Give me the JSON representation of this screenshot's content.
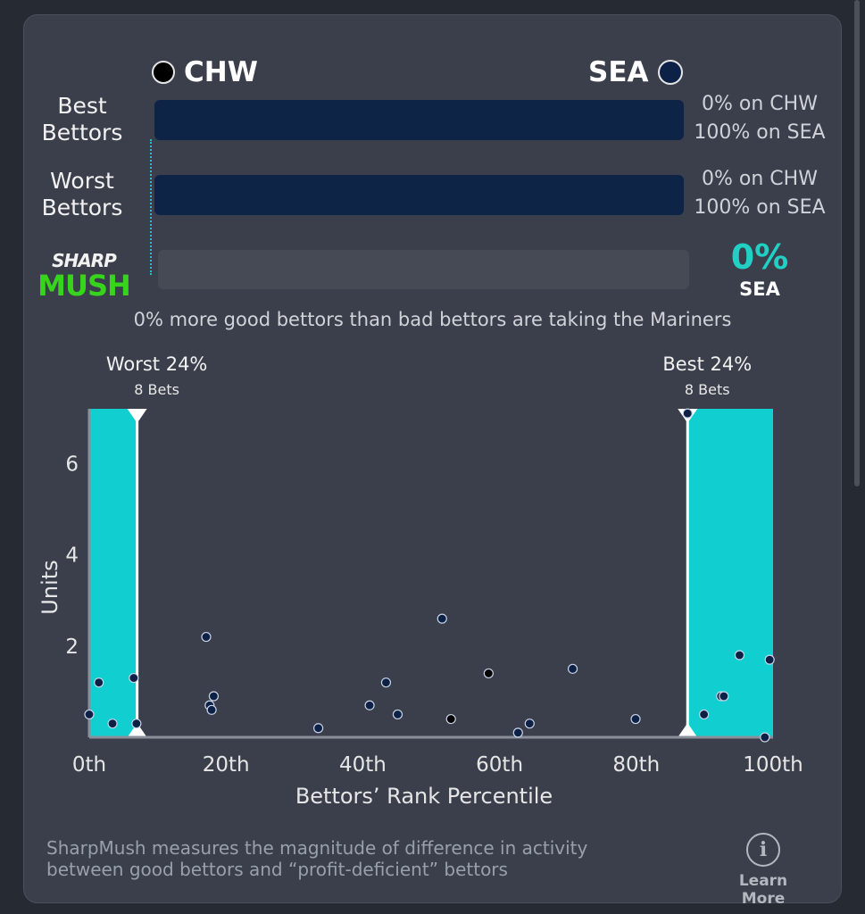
{
  "header": {
    "away_team": "CHW",
    "home_team": "SEA"
  },
  "rows": {
    "best": {
      "label_line1": "Best",
      "label_line2": "Bettors",
      "away_pct": "0% on CHW",
      "home_pct": "100% on SEA",
      "home_share": 1.0
    },
    "worst": {
      "label_line1": "Worst",
      "label_line2": "Bettors",
      "away_pct": "0% on CHW",
      "home_pct": "100% on SEA",
      "home_share": 1.0
    }
  },
  "sharpmush": {
    "logo_top": "SHARP",
    "logo_bottom": "MUSH",
    "value": "0%",
    "team": "SEA",
    "summary": "0% more good bettors than bad bettors are taking the Mariners"
  },
  "colors": {
    "accent": "#11cfd0",
    "navy": "#0e2447",
    "chw_dot": "#000000",
    "sea_dot": "#0d2146"
  },
  "chart_data": {
    "type": "scatter",
    "xlabel": "Bettors’ Rank Percentile",
    "ylabel": "Units",
    "xlim": [
      0,
      100
    ],
    "ylim": [
      0,
      7.2
    ],
    "x_ticks": [
      {
        "value": 0,
        "label": "0th"
      },
      {
        "value": 20,
        "label": "20th"
      },
      {
        "value": 40,
        "label": "40th"
      },
      {
        "value": 60,
        "label": "60th"
      },
      {
        "value": 80,
        "label": "80th"
      },
      {
        "value": 100,
        "label": "100th"
      }
    ],
    "y_ticks": [
      {
        "value": 2,
        "label": "2"
      },
      {
        "value": 4,
        "label": "4"
      },
      {
        "value": 6,
        "label": "6"
      }
    ],
    "regions": [
      {
        "name": "worst",
        "label": "Worst 24%",
        "sublabel": "8 Bets",
        "from": 0,
        "to": 7
      },
      {
        "name": "best",
        "label": "Best 24%",
        "sublabel": "8 Bets",
        "from": 87.5,
        "to": 100
      }
    ],
    "series": [
      {
        "name": "SEA",
        "points": [
          [
            0,
            0.5
          ],
          [
            1.4,
            1.2
          ],
          [
            3.4,
            0.3
          ],
          [
            6.5,
            1.3
          ],
          [
            6.9,
            0.3
          ],
          [
            17.1,
            2.2
          ],
          [
            17.6,
            0.7
          ],
          [
            17.9,
            0.6
          ],
          [
            18.2,
            0.9
          ],
          [
            33.5,
            0.2
          ],
          [
            41.0,
            0.7
          ],
          [
            43.4,
            1.2
          ],
          [
            45.1,
            0.5
          ],
          [
            51.6,
            2.6
          ],
          [
            62.7,
            0.1
          ],
          [
            64.4,
            0.3
          ],
          [
            70.7,
            1.5
          ],
          [
            79.9,
            0.4
          ],
          [
            87.5,
            7.1
          ],
          [
            89.9,
            0.5
          ],
          [
            92.4,
            0.9
          ],
          [
            92.8,
            0.9
          ],
          [
            95.1,
            1.8
          ],
          [
            98.8,
            0.0
          ],
          [
            99.5,
            1.7
          ]
        ]
      },
      {
        "name": "CHW",
        "points": [
          [
            52.9,
            0.4
          ],
          [
            58.4,
            1.4
          ]
        ]
      }
    ]
  },
  "footer": {
    "note_line1": "SharpMush measures the magnitude of difference in activity",
    "note_line2": "between good bettors and “profit-deficient” bettors",
    "learn_more": "Learn More",
    "info_glyph": "i"
  }
}
